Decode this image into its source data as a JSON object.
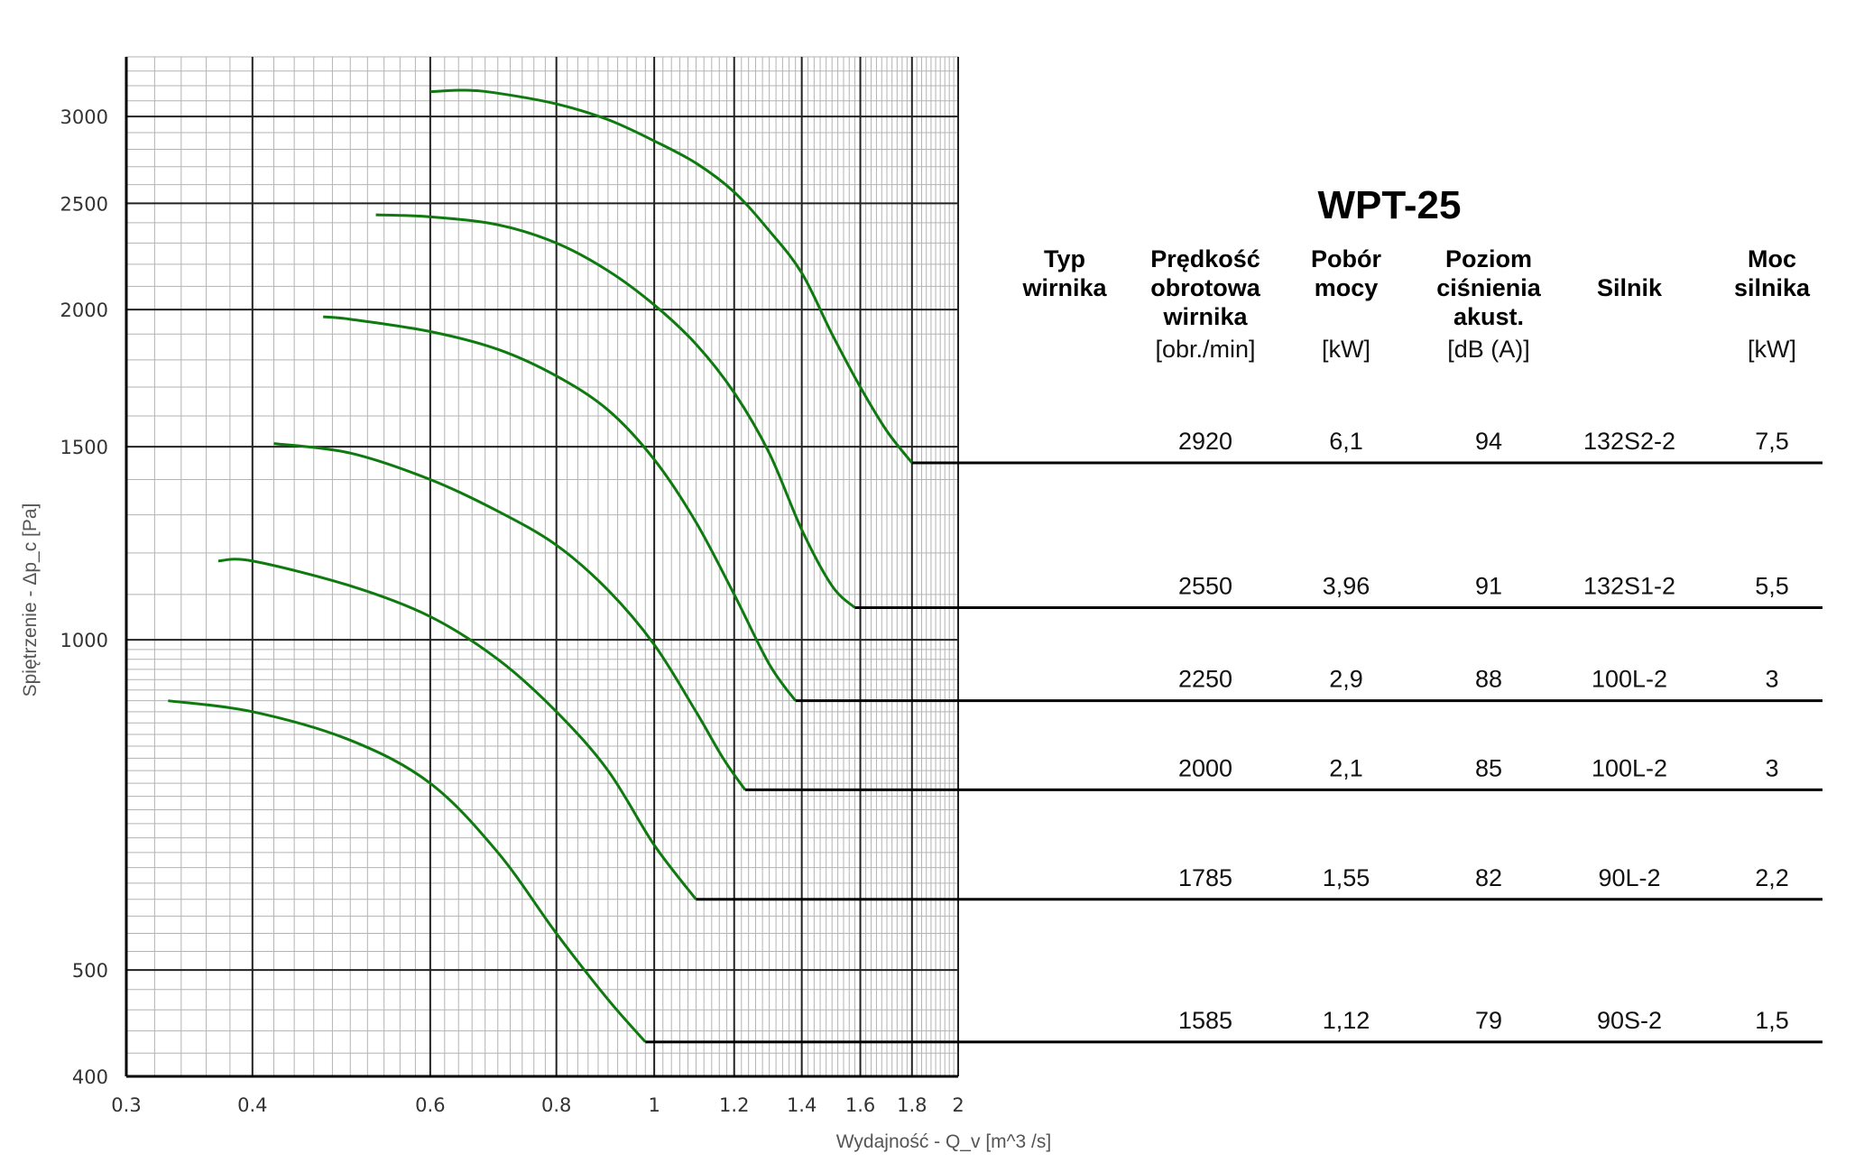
{
  "chart_data": {
    "type": "line",
    "title": "WPT-25",
    "xlabel": "Wydajność - Q_v [m^3 /s]",
    "ylabel": "Spiętrzenie - Δp_c [Pa]",
    "x_scale": "log",
    "y_scale": "log",
    "xlim": [
      0.3,
      2
    ],
    "ylim": [
      400,
      3400
    ],
    "x_ticks": [
      "0.3",
      "0.4",
      "0.6",
      "0.8",
      "1",
      "1.2",
      "1.4",
      "1.6",
      "1.8",
      "2"
    ],
    "y_ticks": [
      "400",
      "500",
      "1000",
      "1500",
      "2000",
      "2500",
      "3000"
    ],
    "grid": true,
    "series": [
      {
        "rpm": "2920",
        "points": [
          [
            0.6,
            3160
          ],
          [
            0.65,
            3170
          ],
          [
            0.7,
            3150
          ],
          [
            0.8,
            3080
          ],
          [
            0.9,
            2980
          ],
          [
            1.0,
            2850
          ],
          [
            1.1,
            2720
          ],
          [
            1.2,
            2560
          ],
          [
            1.3,
            2360
          ],
          [
            1.4,
            2160
          ],
          [
            1.5,
            1900
          ],
          [
            1.6,
            1700
          ],
          [
            1.7,
            1550
          ],
          [
            1.8,
            1450
          ]
        ],
        "end": [
          1.8,
          1450
        ]
      },
      {
        "rpm": "2550",
        "points": [
          [
            0.53,
            2440
          ],
          [
            0.6,
            2430
          ],
          [
            0.7,
            2390
          ],
          [
            0.8,
            2300
          ],
          [
            0.9,
            2170
          ],
          [
            1.0,
            2020
          ],
          [
            1.1,
            1860
          ],
          [
            1.2,
            1680
          ],
          [
            1.3,
            1480
          ],
          [
            1.4,
            1260
          ],
          [
            1.5,
            1120
          ],
          [
            1.58,
            1070
          ]
        ],
        "end": [
          1.58,
          1070
        ]
      },
      {
        "rpm": "2250",
        "points": [
          [
            0.47,
            1970
          ],
          [
            0.5,
            1960
          ],
          [
            0.6,
            1910
          ],
          [
            0.7,
            1840
          ],
          [
            0.8,
            1740
          ],
          [
            0.9,
            1620
          ],
          [
            1.0,
            1460
          ],
          [
            1.1,
            1280
          ],
          [
            1.2,
            1100
          ],
          [
            1.3,
            950
          ],
          [
            1.38,
            880
          ]
        ],
        "end": [
          1.38,
          880
        ]
      },
      {
        "rpm": "2000",
        "points": [
          [
            0.42,
            1510
          ],
          [
            0.5,
            1480
          ],
          [
            0.6,
            1400
          ],
          [
            0.7,
            1310
          ],
          [
            0.8,
            1220
          ],
          [
            0.9,
            1110
          ],
          [
            1.0,
            990
          ],
          [
            1.1,
            860
          ],
          [
            1.17,
            780
          ],
          [
            1.23,
            730
          ]
        ],
        "end": [
          1.23,
          730
        ]
      },
      {
        "rpm": "1785",
        "points": [
          [
            0.37,
            1180
          ],
          [
            0.4,
            1180
          ],
          [
            0.5,
            1120
          ],
          [
            0.6,
            1050
          ],
          [
            0.7,
            960
          ],
          [
            0.8,
            860
          ],
          [
            0.9,
            760
          ],
          [
            1.0,
            650
          ],
          [
            1.1,
            580
          ]
        ],
        "end": [
          1.1,
          580
        ]
      },
      {
        "rpm": "1585",
        "points": [
          [
            0.33,
            880
          ],
          [
            0.4,
            860
          ],
          [
            0.5,
            810
          ],
          [
            0.6,
            740
          ],
          [
            0.7,
            640
          ],
          [
            0.8,
            540
          ],
          [
            0.9,
            470
          ],
          [
            0.98,
            430
          ]
        ],
        "end": [
          0.98,
          430
        ]
      }
    ]
  },
  "table": {
    "title": "WPT-25",
    "headers": [
      {
        "lines": [
          "Typ",
          "wirnika"
        ],
        "unit": ""
      },
      {
        "lines": [
          "Prędkość",
          "obrotowa",
          "wirnika"
        ],
        "unit": "[obr./min]"
      },
      {
        "lines": [
          "Pobór",
          "mocy"
        ],
        "unit": "[kW]"
      },
      {
        "lines": [
          "Poziom",
          "ciśnienia",
          "akust."
        ],
        "unit": "[dB (A)]"
      },
      {
        "lines": [
          "Silnik"
        ],
        "unit": ""
      },
      {
        "lines": [
          "Moc",
          "silnika"
        ],
        "unit": "[kW]"
      }
    ],
    "rows": [
      {
        "typ": "",
        "rpm": "2920",
        "power": "6,1",
        "noise": "94",
        "motor": "132S2-2",
        "motor_power": "7,5"
      },
      {
        "typ": "",
        "rpm": "2550",
        "power": "3,96",
        "noise": "91",
        "motor": "132S1-2",
        "motor_power": "5,5"
      },
      {
        "typ": "",
        "rpm": "2250",
        "power": "2,9",
        "noise": "88",
        "motor": "100L-2",
        "motor_power": "3"
      },
      {
        "typ": "",
        "rpm": "2000",
        "power": "2,1",
        "noise": "85",
        "motor": "100L-2",
        "motor_power": "3"
      },
      {
        "typ": "",
        "rpm": "1785",
        "power": "1,55",
        "noise": "82",
        "motor": "90L-2",
        "motor_power": "2,2"
      },
      {
        "typ": "",
        "rpm": "1585",
        "power": "1,12",
        "noise": "79",
        "motor": "90S-2",
        "motor_power": "1,5"
      }
    ]
  },
  "colors": {
    "curve": "#0f7a0f",
    "grid_major": "#222222",
    "grid_minor": "#b3b3b3",
    "row_line": "#000000"
  }
}
